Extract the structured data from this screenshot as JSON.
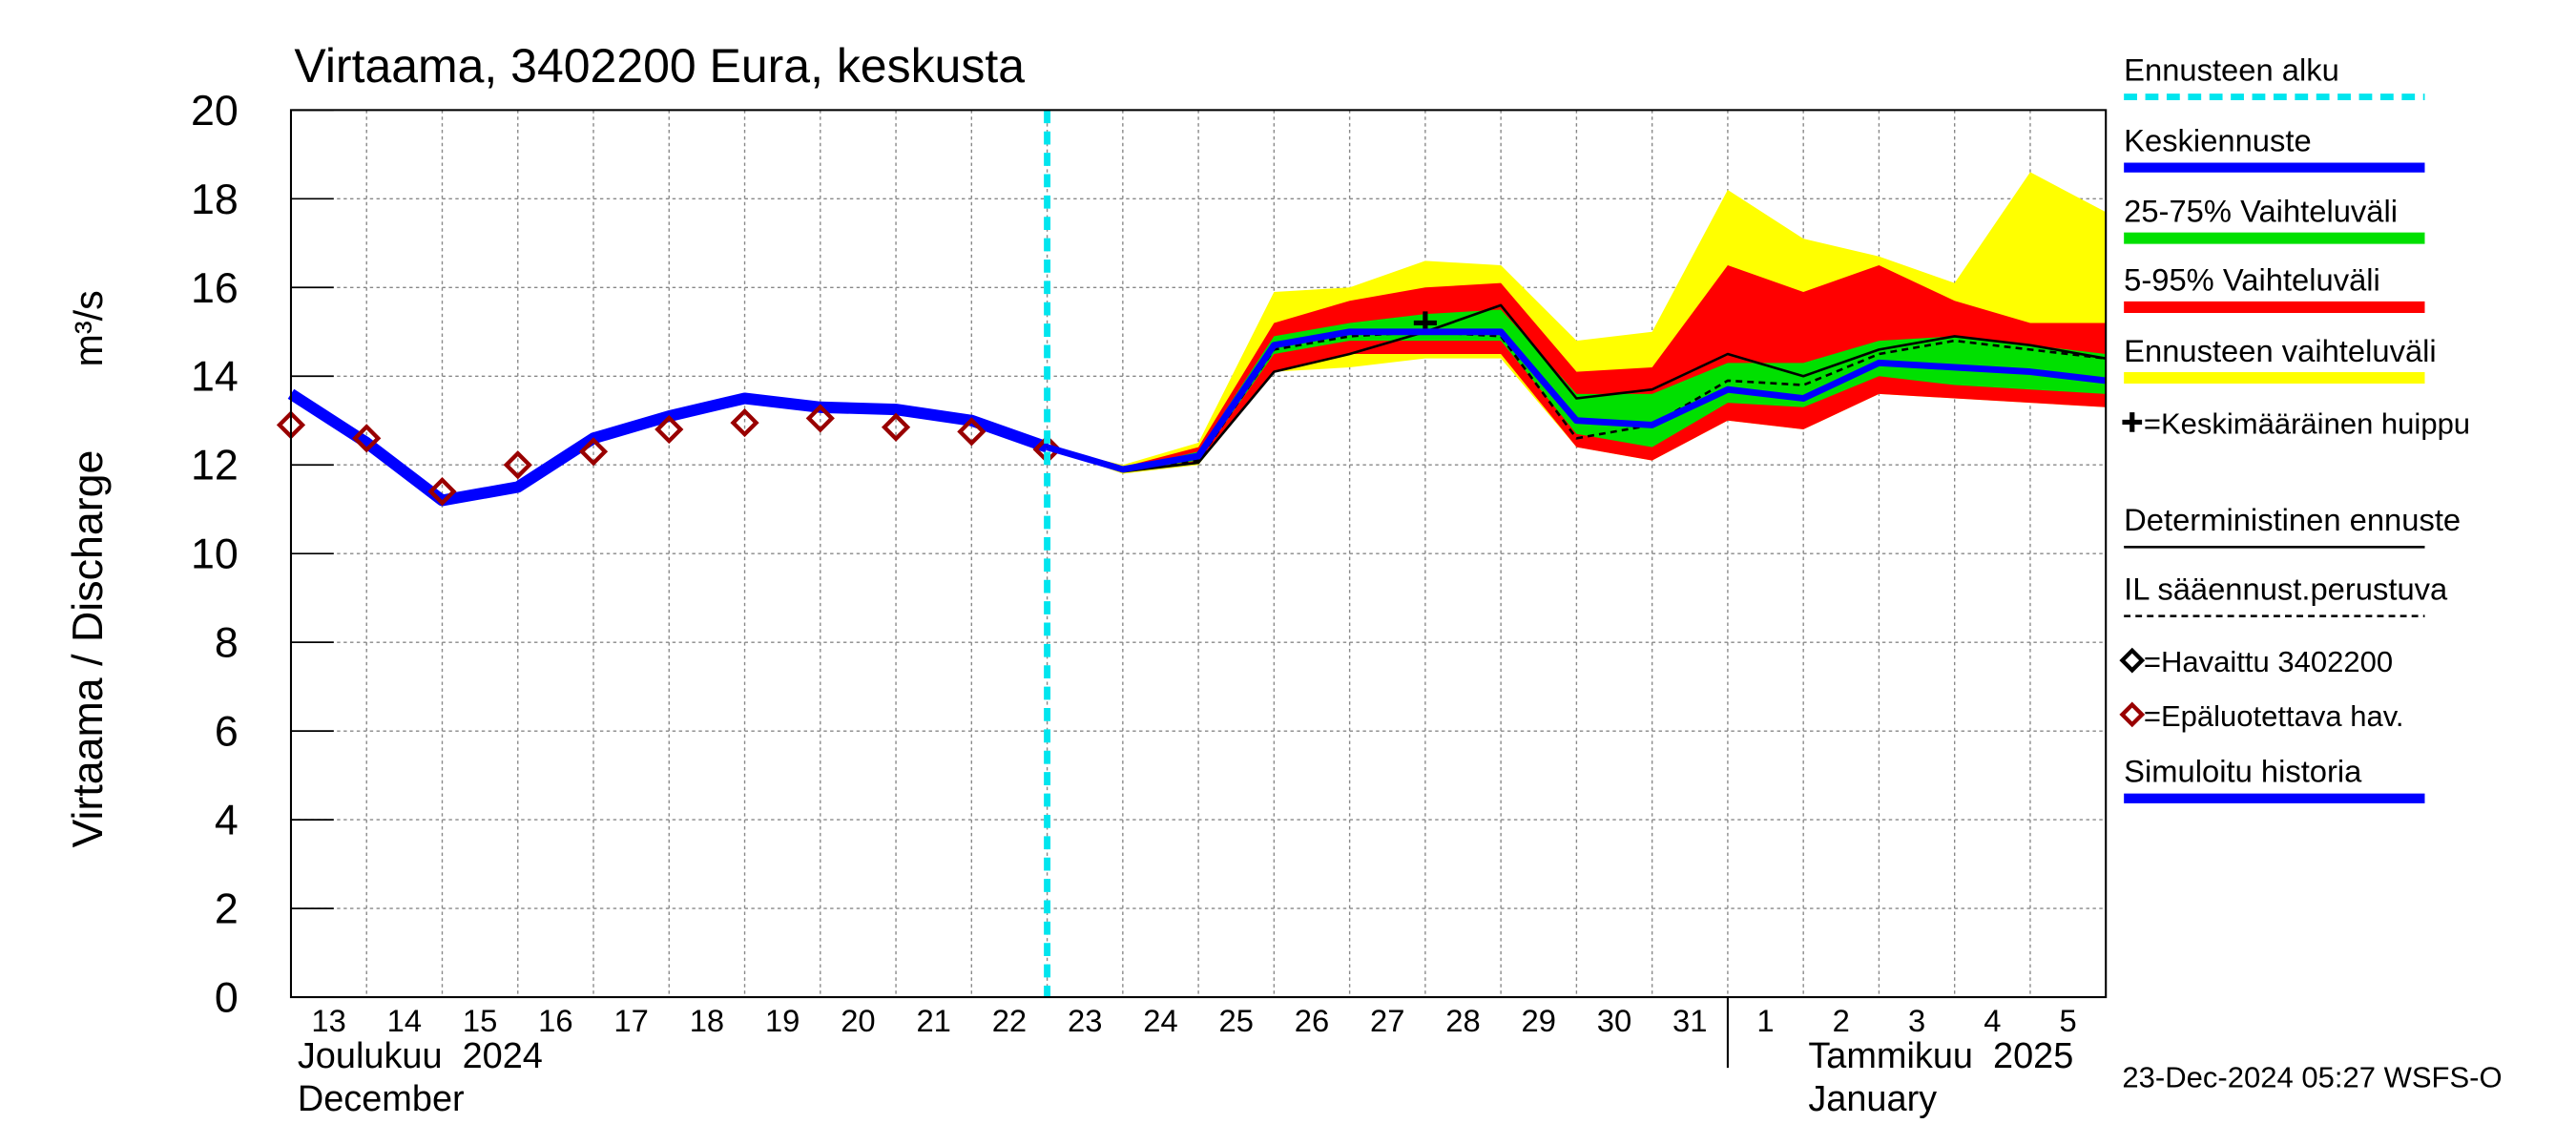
{
  "chart_data": {
    "type": "line",
    "title": "Virtaama, 3402200 Eura, keskusta",
    "y_label": "Virtaama / Discharge",
    "y_unit": "m³/s",
    "categories": [
      "13",
      "14",
      "15",
      "16",
      "17",
      "18",
      "19",
      "20",
      "21",
      "22",
      "23",
      "24",
      "25",
      "26",
      "27",
      "28",
      "29",
      "30",
      "31",
      "1",
      "2",
      "3",
      "4",
      "5",
      null
    ],
    "months": [
      {
        "label": "Joulukuu  2024",
        "label2": "December"
      },
      {
        "label": "Tammikuu  2025",
        "label2": "January"
      }
    ],
    "ylim": [
      0,
      20
    ],
    "yticks": [
      0,
      2,
      4,
      6,
      8,
      10,
      12,
      14,
      16,
      18,
      20
    ],
    "grid": true,
    "forecast_start": {
      "name": "Ennusteen alku",
      "color": "#00e5ee",
      "category": "23"
    },
    "series": [
      {
        "name": "Keskiennuste",
        "color": "#0000ff",
        "style": "line",
        "width": 4,
        "values": [
          null,
          null,
          null,
          null,
          null,
          null,
          null,
          null,
          null,
          null,
          12.4,
          11.9,
          12.2,
          14.7,
          15.0,
          15.0,
          15.0,
          13.0,
          12.9,
          13.7,
          13.5,
          14.3,
          14.2,
          14.1,
          13.9
        ]
      },
      {
        "name": "25-75% Vaihteluväli",
        "color": "#00e000",
        "style": "band",
        "values": [
          null,
          null,
          null,
          null,
          null,
          null,
          null,
          null,
          null,
          null,
          12.4,
          11.9,
          12.3,
          14.9,
          15.2,
          15.4,
          15.5,
          13.6,
          13.6,
          14.3,
          14.3,
          14.8,
          14.9,
          14.7,
          14.5
        ],
        "lower": [
          null,
          null,
          null,
          null,
          null,
          null,
          null,
          null,
          null,
          null,
          12.4,
          11.85,
          12.1,
          14.5,
          14.8,
          14.8,
          14.8,
          12.7,
          12.4,
          13.4,
          13.3,
          14.0,
          13.8,
          13.7,
          13.6
        ]
      },
      {
        "name": "5-95% Vaihteluväli",
        "color": "#ff0000",
        "style": "band",
        "values": [
          null,
          null,
          null,
          null,
          null,
          null,
          null,
          null,
          null,
          null,
          12.4,
          11.95,
          12.4,
          15.2,
          15.7,
          16.0,
          16.1,
          14.1,
          14.2,
          16.5,
          15.9,
          16.5,
          15.7,
          15.2,
          15.2
        ],
        "lower": [
          null,
          null,
          null,
          null,
          null,
          null,
          null,
          null,
          null,
          null,
          12.4,
          11.85,
          12.05,
          14.1,
          14.5,
          14.5,
          14.5,
          12.4,
          12.1,
          13.0,
          12.8,
          13.6,
          13.5,
          13.4,
          13.3
        ]
      },
      {
        "name": "Ennusteen vaihteluväli",
        "color": "#ffff00",
        "style": "band",
        "values": [
          null,
          null,
          null,
          null,
          null,
          null,
          null,
          null,
          null,
          null,
          12.4,
          12.0,
          12.5,
          15.9,
          16.0,
          16.6,
          16.5,
          14.8,
          15.0,
          18.2,
          17.1,
          16.7,
          16.1,
          18.6,
          17.7
        ],
        "lower": [
          null,
          null,
          null,
          null,
          null,
          null,
          null,
          null,
          null,
          null,
          12.4,
          11.8,
          12.0,
          14.1,
          14.2,
          14.4,
          14.4,
          12.4,
          12.1,
          13.0,
          12.8,
          13.6,
          13.5,
          13.4,
          13.3
        ]
      },
      {
        "name": "=Keskimääräinen huippu",
        "color": "#000000",
        "style": "plus",
        "values": [
          null,
          null,
          null,
          null,
          null,
          null,
          null,
          null,
          null,
          null,
          null,
          null,
          null,
          null,
          null,
          15.2,
          null,
          null,
          null,
          null,
          null,
          null,
          null,
          null,
          null
        ]
      },
      {
        "name": "Deterministinen ennuste",
        "color": "#000000",
        "style": "line",
        "width": 1.5,
        "values": [
          null,
          null,
          null,
          null,
          null,
          null,
          null,
          null,
          null,
          null,
          12.4,
          11.85,
          12.05,
          14.1,
          14.5,
          15.0,
          15.6,
          13.5,
          13.7,
          14.5,
          14.0,
          14.6,
          14.9,
          14.7,
          14.4
        ]
      },
      {
        "name": "IL sääennust.perustuva",
        "color": "#000000",
        "style": "dashed",
        "width": 1.5,
        "values": [
          null,
          null,
          null,
          null,
          null,
          null,
          null,
          null,
          null,
          null,
          12.4,
          11.9,
          12.1,
          14.6,
          14.9,
          15.0,
          14.9,
          12.6,
          12.9,
          13.9,
          13.8,
          14.5,
          14.8,
          14.6,
          14.4
        ]
      },
      {
        "name": "=Havaittu 3402200",
        "color": "#000000",
        "style": "diamond",
        "values": [
          null,
          null,
          null,
          null,
          null,
          null,
          null,
          null,
          null,
          null,
          null,
          null,
          null,
          null,
          null,
          null,
          null,
          null,
          null,
          null,
          null,
          null,
          null,
          null,
          null
        ]
      },
      {
        "name": "=Epäluotettava hav.",
        "color": "#990000",
        "style": "diamond",
        "values": [
          12.9,
          12.6,
          11.4,
          12.0,
          12.3,
          12.8,
          12.95,
          13.05,
          12.85,
          12.75,
          12.35,
          null,
          null,
          null,
          null,
          null,
          null,
          null,
          null,
          null,
          null,
          null,
          null,
          null,
          null
        ]
      },
      {
        "name": "Simuloitu historia",
        "color": "#0000ff",
        "style": "line",
        "width": 7,
        "values": [
          13.6,
          12.5,
          11.2,
          11.5,
          12.6,
          13.1,
          13.5,
          13.3,
          13.25,
          13.0,
          12.4,
          null,
          null,
          null,
          null,
          null,
          null,
          null,
          null,
          null,
          null,
          null,
          null,
          null,
          null
        ]
      }
    ],
    "footer": "23-Dec-2024 05:27 WSFS-O"
  }
}
